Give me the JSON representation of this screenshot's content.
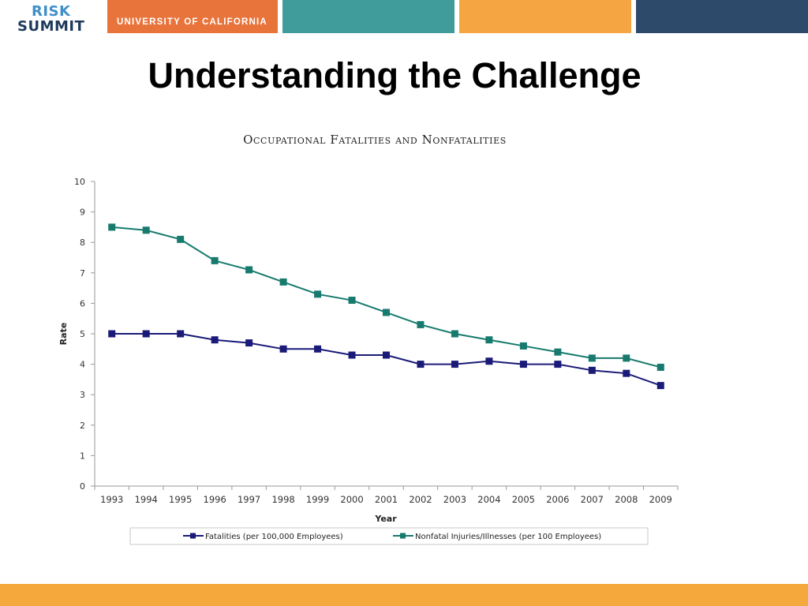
{
  "header": {
    "logo_line1": "RISK",
    "logo_line2": "SUMMIT",
    "org": "UNIVERSITY OF CALIFORNIA"
  },
  "slide": {
    "title": "Understanding the Challenge"
  },
  "colors": {
    "orange": "#e8743b",
    "teal": "#3f9c9b",
    "amber": "#f5a542",
    "navy": "#2e4a6b",
    "fatalities": "#1a1a78",
    "nonfatal": "#177a6e"
  },
  "chart_data": {
    "type": "line",
    "title": "Occupational Fatalities and Nonfatalities",
    "xlabel": "Year",
    "ylabel": "Rate",
    "ylim": [
      0,
      10
    ],
    "yticks": [
      0,
      1,
      2,
      3,
      4,
      5,
      6,
      7,
      8,
      9,
      10
    ],
    "x": [
      "1993",
      "1994",
      "1995",
      "1996",
      "1997",
      "1998",
      "1999",
      "2000",
      "2001",
      "2002",
      "2003",
      "2004",
      "2005",
      "2006",
      "2007",
      "2008",
      "2009"
    ],
    "series": [
      {
        "name": "Fatalities (per 100,000 Employees)",
        "color": "#1a1a78",
        "values": [
          5.0,
          5.0,
          5.0,
          4.8,
          4.7,
          4.5,
          4.5,
          4.3,
          4.3,
          4.0,
          4.0,
          4.1,
          4.0,
          4.0,
          3.8,
          3.7,
          3.3
        ]
      },
      {
        "name": "Nonfatal Injuries/Illnesses (per 100 Employees)",
        "color": "#177a6e",
        "values": [
          8.5,
          8.4,
          8.1,
          7.4,
          7.1,
          6.7,
          6.3,
          6.1,
          5.7,
          5.3,
          5.0,
          4.8,
          4.6,
          4.4,
          4.2,
          4.2,
          3.9
        ]
      }
    ],
    "grid": false,
    "legend": "bottom"
  }
}
